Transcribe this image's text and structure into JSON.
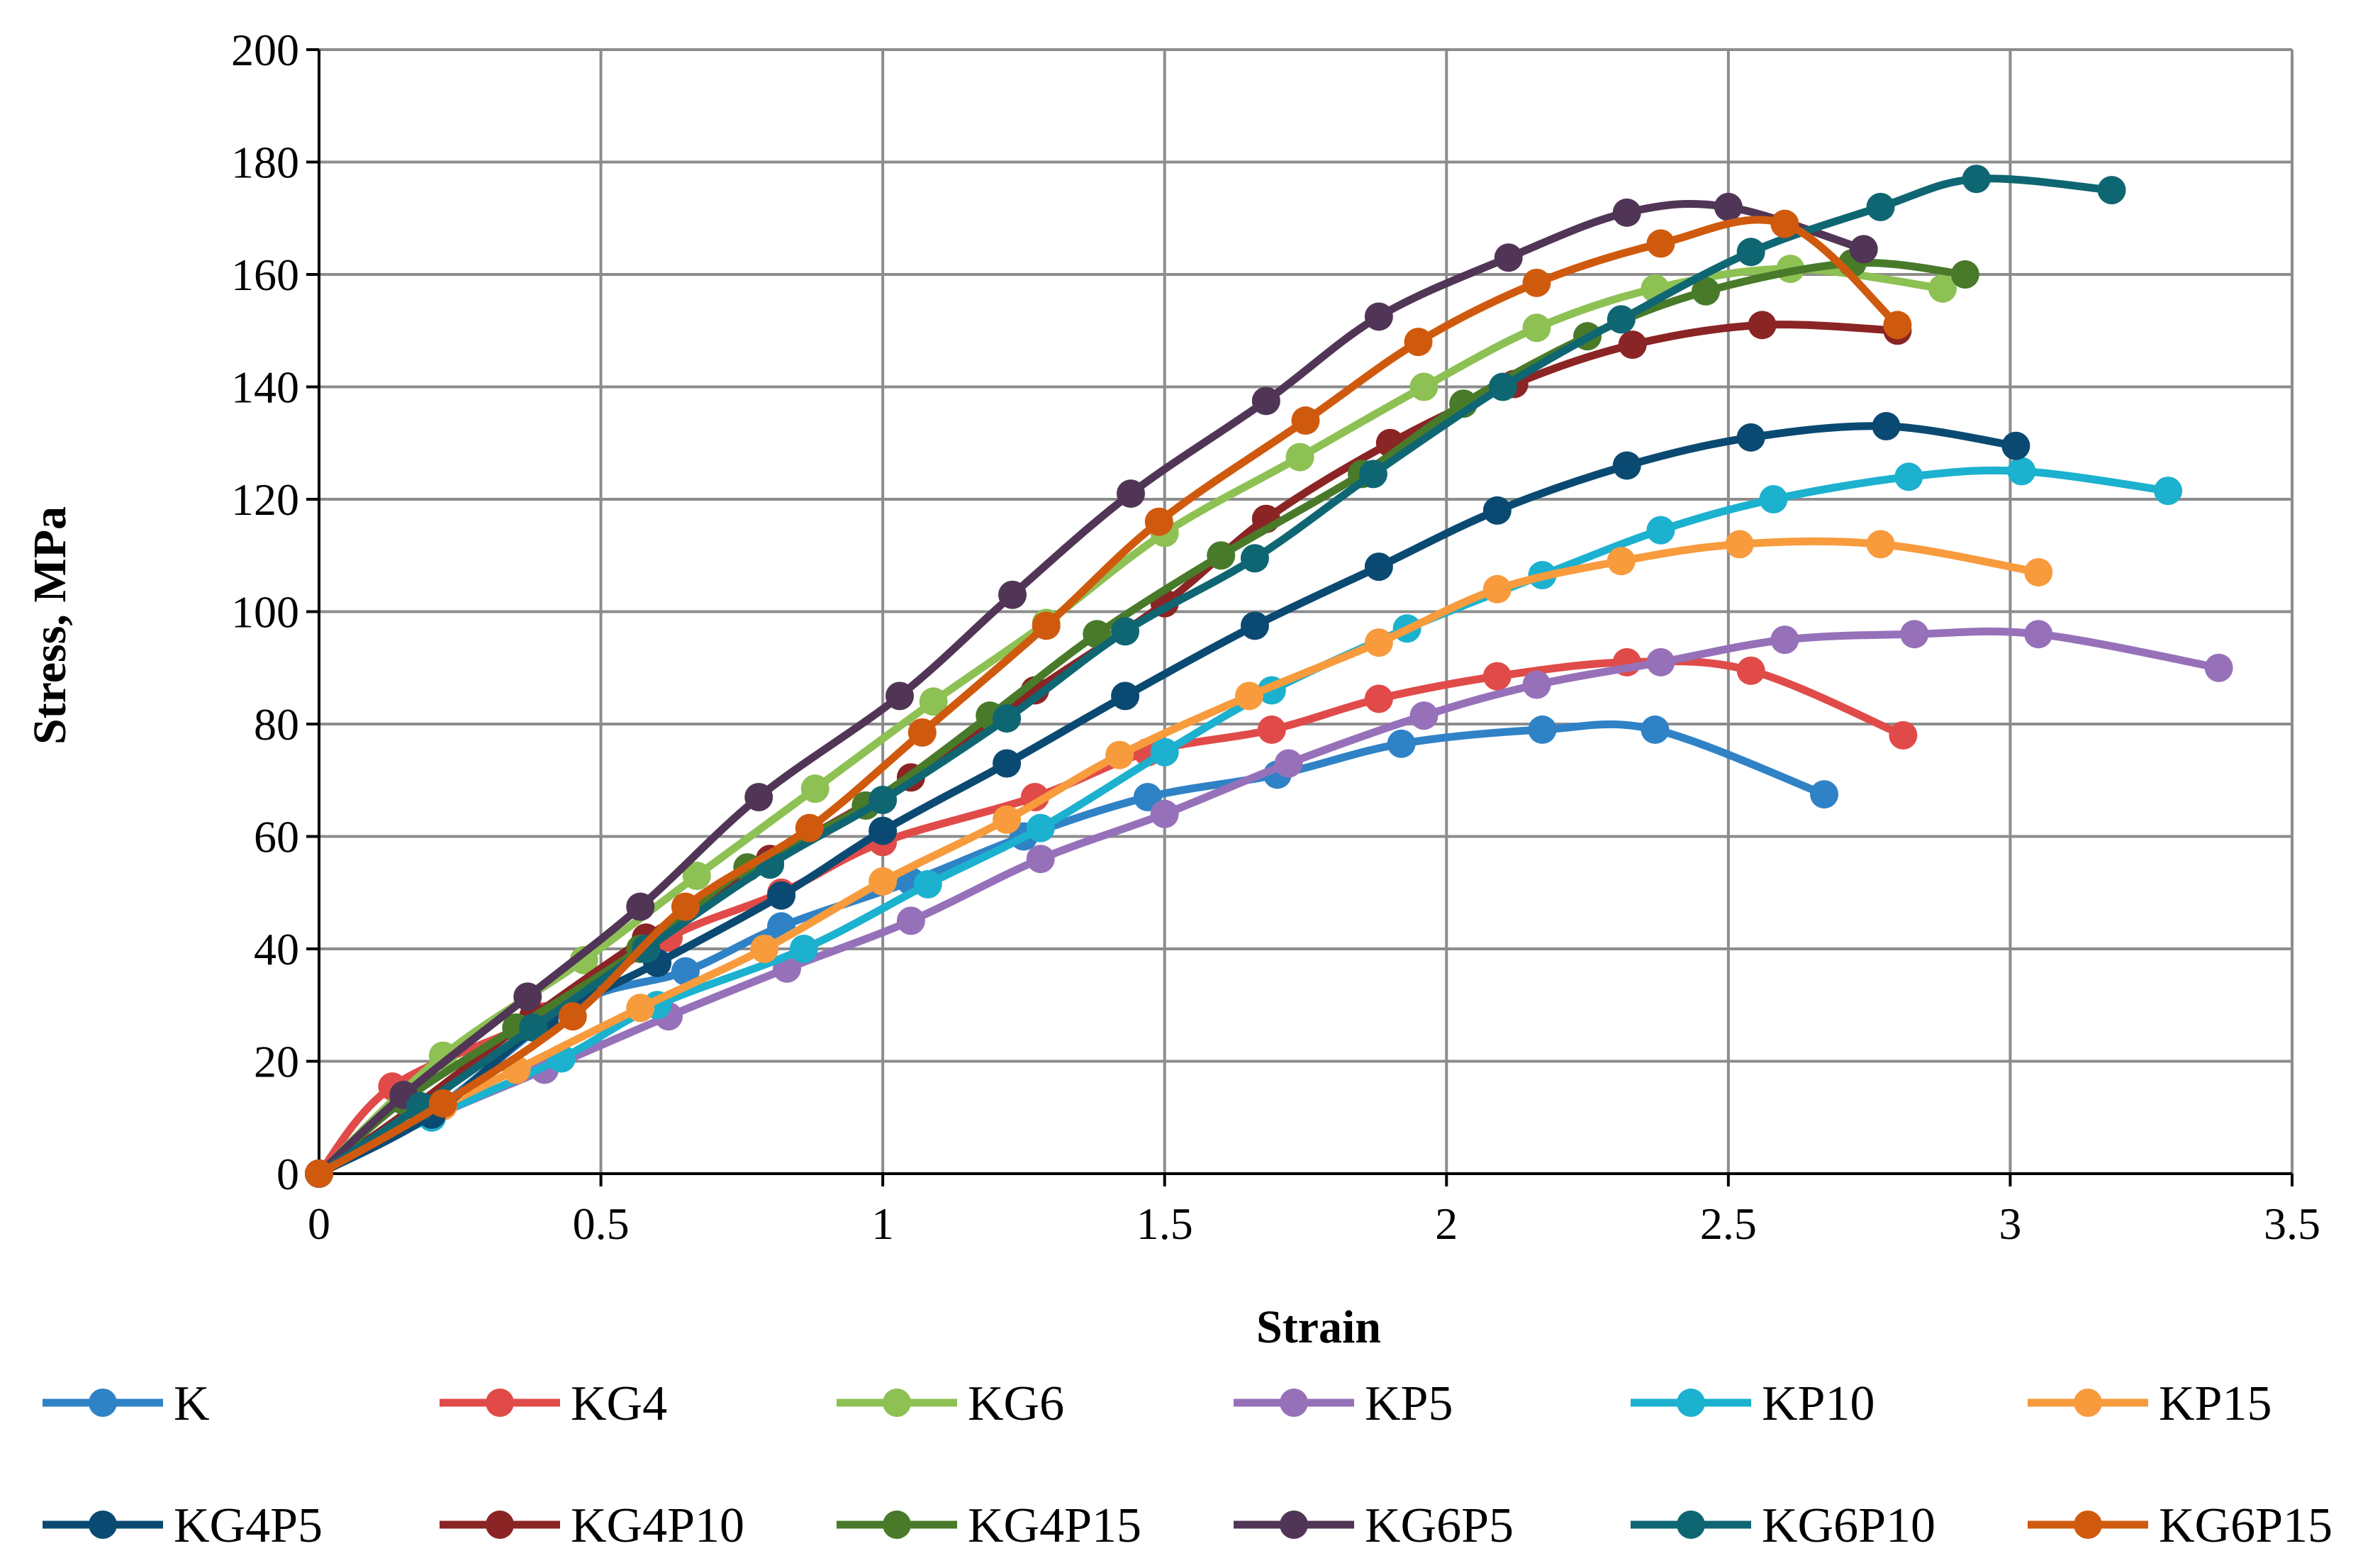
{
  "chart_data": {
    "type": "line",
    "title": "",
    "xlabel": "Strain",
    "ylabel": "Stress, MPa",
    "xlim": [
      0,
      3.5
    ],
    "ylim": [
      0,
      200
    ],
    "x_ticks": [
      0,
      0.5,
      1,
      1.5,
      2,
      2.5,
      3,
      3.5
    ],
    "x_tick_labels": [
      "0",
      "0.5",
      "1",
      "1.5",
      "2",
      "2.5",
      "3",
      "3.5"
    ],
    "y_ticks": [
      0,
      20,
      40,
      60,
      80,
      100,
      120,
      140,
      160,
      180,
      200
    ],
    "y_tick_labels": [
      "0",
      "20",
      "40",
      "60",
      "80",
      "100",
      "120",
      "140",
      "160",
      "180",
      "200"
    ],
    "grid": true,
    "legend_position": "bottom",
    "series": [
      {
        "name": "K",
        "color": "#2F82C6",
        "points": [
          [
            0,
            0
          ],
          [
            0.2,
            11
          ],
          [
            0.45,
            30
          ],
          [
            0.65,
            36
          ],
          [
            0.82,
            44
          ],
          [
            1.05,
            52
          ],
          [
            1.25,
            60
          ],
          [
            1.47,
            67
          ],
          [
            1.7,
            71
          ],
          [
            1.92,
            76.5
          ],
          [
            2.17,
            79
          ],
          [
            2.37,
            79
          ],
          [
            2.67,
            67.5
          ]
        ]
      },
      {
        "name": "KG4",
        "color": "#E04B49",
        "points": [
          [
            0,
            0
          ],
          [
            0.13,
            15.5
          ],
          [
            0.4,
            28
          ],
          [
            0.62,
            42
          ],
          [
            0.82,
            50
          ],
          [
            1,
            59
          ],
          [
            1.27,
            67
          ],
          [
            1.47,
            75
          ],
          [
            1.69,
            79
          ],
          [
            1.88,
            84.5
          ],
          [
            2.09,
            88.5
          ],
          [
            2.32,
            91
          ],
          [
            2.54,
            89.5
          ],
          [
            2.81,
            78
          ]
        ]
      },
      {
        "name": "KG6",
        "color": "#8DC153",
        "points": [
          [
            0,
            0
          ],
          [
            0.22,
            21
          ],
          [
            0.47,
            38
          ],
          [
            0.67,
            53
          ],
          [
            0.88,
            68.5
          ],
          [
            1.09,
            84
          ],
          [
            1.29,
            98
          ],
          [
            1.5,
            114
          ],
          [
            1.74,
            127.5
          ],
          [
            1.96,
            140
          ],
          [
            2.16,
            150.5
          ],
          [
            2.37,
            157.5
          ],
          [
            2.61,
            161
          ],
          [
            2.88,
            157.5
          ]
        ]
      },
      {
        "name": "KP5",
        "color": "#9671B9",
        "points": [
          [
            0,
            0
          ],
          [
            0.2,
            10
          ],
          [
            0.4,
            18.5
          ],
          [
            0.62,
            28
          ],
          [
            0.83,
            36.5
          ],
          [
            1.05,
            45
          ],
          [
            1.28,
            56
          ],
          [
            1.5,
            64
          ],
          [
            1.72,
            73
          ],
          [
            1.96,
            81.5
          ],
          [
            2.16,
            87
          ],
          [
            2.38,
            91
          ],
          [
            2.6,
            95
          ],
          [
            2.83,
            96
          ],
          [
            3.05,
            96
          ],
          [
            3.37,
            90
          ]
        ]
      },
      {
        "name": "KP10",
        "color": "#1BB1CF",
        "points": [
          [
            0,
            0
          ],
          [
            0.2,
            10
          ],
          [
            0.43,
            20.5
          ],
          [
            0.6,
            30
          ],
          [
            0.86,
            40
          ],
          [
            1.08,
            51.5
          ],
          [
            1.28,
            61.5
          ],
          [
            1.5,
            75
          ],
          [
            1.69,
            86
          ],
          [
            1.93,
            97
          ],
          [
            2.17,
            106.5
          ],
          [
            2.38,
            114.5
          ],
          [
            2.58,
            120
          ],
          [
            2.82,
            124
          ],
          [
            3.02,
            125
          ],
          [
            3.28,
            121.5
          ]
        ]
      },
      {
        "name": "KP15",
        "color": "#F79B3D",
        "points": [
          [
            0,
            0
          ],
          [
            0.22,
            12
          ],
          [
            0.35,
            18.5
          ],
          [
            0.57,
            29.5
          ],
          [
            0.79,
            40
          ],
          [
            1,
            52
          ],
          [
            1.22,
            63
          ],
          [
            1.42,
            74.5
          ],
          [
            1.65,
            85
          ],
          [
            1.88,
            94.5
          ],
          [
            2.09,
            104
          ],
          [
            2.31,
            109
          ],
          [
            2.52,
            112
          ],
          [
            2.77,
            112
          ],
          [
            3.05,
            107
          ]
        ]
      },
      {
        "name": "KG4P5",
        "color": "#0A4A72",
        "points": [
          [
            0,
            0
          ],
          [
            0.2,
            10.5
          ],
          [
            0.4,
            27
          ],
          [
            0.6,
            37.5
          ],
          [
            0.82,
            49.5
          ],
          [
            1,
            61
          ],
          [
            1.22,
            73
          ],
          [
            1.43,
            85
          ],
          [
            1.66,
            97.5
          ],
          [
            1.88,
            108
          ],
          [
            2.09,
            118
          ],
          [
            2.32,
            126
          ],
          [
            2.54,
            131
          ],
          [
            2.78,
            133
          ],
          [
            3.01,
            129.5
          ]
        ]
      },
      {
        "name": "KG4P10",
        "color": "#8B2424",
        "points": [
          [
            0,
            0
          ],
          [
            0.17,
            12
          ],
          [
            0.38,
            28
          ],
          [
            0.58,
            42
          ],
          [
            0.8,
            56
          ],
          [
            1.05,
            70.5
          ],
          [
            1.27,
            86
          ],
          [
            1.5,
            101.5
          ],
          [
            1.68,
            116.5
          ],
          [
            1.9,
            130
          ],
          [
            2.12,
            140.5
          ],
          [
            2.33,
            147.5
          ],
          [
            2.56,
            151
          ],
          [
            2.8,
            150
          ]
        ]
      },
      {
        "name": "KG4P15",
        "color": "#487A2A",
        "points": [
          [
            0,
            0
          ],
          [
            0.15,
            13
          ],
          [
            0.35,
            26
          ],
          [
            0.57,
            40
          ],
          [
            0.76,
            54.5
          ],
          [
            0.97,
            65.5
          ],
          [
            1.19,
            81.5
          ],
          [
            1.38,
            96
          ],
          [
            1.6,
            110
          ],
          [
            1.85,
            124.5
          ],
          [
            2.03,
            137
          ],
          [
            2.25,
            149
          ],
          [
            2.46,
            157
          ],
          [
            2.72,
            162
          ],
          [
            2.92,
            160
          ]
        ]
      },
      {
        "name": "KG6P5",
        "color": "#513556",
        "points": [
          [
            0,
            0
          ],
          [
            0.15,
            14
          ],
          [
            0.37,
            31.5
          ],
          [
            0.57,
            47.5
          ],
          [
            0.78,
            67
          ],
          [
            1.03,
            85
          ],
          [
            1.23,
            103
          ],
          [
            1.44,
            121
          ],
          [
            1.68,
            137.5
          ],
          [
            1.88,
            152.5
          ],
          [
            2.11,
            163
          ],
          [
            2.32,
            171
          ],
          [
            2.5,
            172
          ],
          [
            2.74,
            164.5
          ]
        ]
      },
      {
        "name": "KG6P10",
        "color": "#0F6673",
        "points": [
          [
            0,
            0
          ],
          [
            0.18,
            12
          ],
          [
            0.38,
            26
          ],
          [
            0.58,
            40
          ],
          [
            0.8,
            55
          ],
          [
            1,
            66.5
          ],
          [
            1.22,
            81
          ],
          [
            1.43,
            96.5
          ],
          [
            1.66,
            109.5
          ],
          [
            1.87,
            124.5
          ],
          [
            2.1,
            140
          ],
          [
            2.31,
            152
          ],
          [
            2.54,
            164
          ],
          [
            2.77,
            172
          ],
          [
            2.94,
            177
          ],
          [
            3.18,
            175
          ]
        ]
      },
      {
        "name": "KG6P15",
        "color": "#CF5A0E",
        "points": [
          [
            0,
            0
          ],
          [
            0.22,
            12.5
          ],
          [
            0.45,
            28
          ],
          [
            0.65,
            47.5
          ],
          [
            0.87,
            61.5
          ],
          [
            1.07,
            78.5
          ],
          [
            1.29,
            97.5
          ],
          [
            1.49,
            116
          ],
          [
            1.75,
            134
          ],
          [
            1.95,
            148
          ],
          [
            2.16,
            158.5
          ],
          [
            2.38,
            165.5
          ],
          [
            2.6,
            169
          ],
          [
            2.8,
            151
          ]
        ]
      }
    ]
  }
}
